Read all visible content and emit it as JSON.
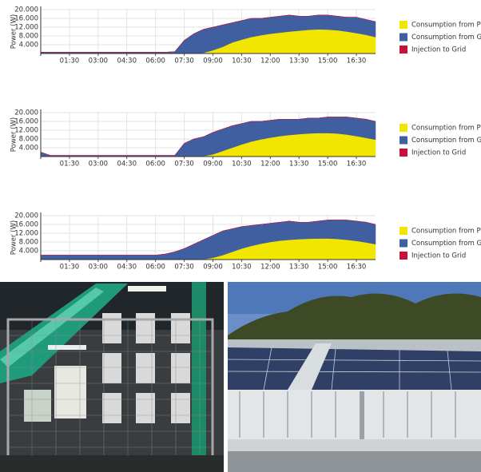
{
  "chart_data": [
    {
      "type": "stacked-area",
      "ylabel": "Power (W)",
      "x": [
        0,
        0.5,
        1,
        1.5,
        2,
        2.5,
        3,
        3.5,
        4,
        4.5,
        5,
        5.5,
        6,
        6.5,
        7,
        7.5,
        8,
        8.5,
        9,
        9.5,
        10,
        10.5,
        11,
        11.5,
        12,
        12.5,
        13,
        13.5,
        14,
        14.5,
        15,
        15.5,
        16,
        16.5,
        17,
        17.5
      ],
      "xlim": [
        0,
        17.5
      ],
      "xticks": [
        {
          "value": 1.5,
          "label": "01:30"
        },
        {
          "value": 3,
          "label": "03:00"
        },
        {
          "value": 4.5,
          "label": "04:30"
        },
        {
          "value": 6,
          "label": "06:00"
        },
        {
          "value": 7.5,
          "label": "07:30"
        },
        {
          "value": 9,
          "label": "09:00"
        },
        {
          "value": 10.5,
          "label": "10:30"
        },
        {
          "value": 12,
          "label": "12:00"
        },
        {
          "value": 13.5,
          "label": "13:30"
        },
        {
          "value": 15,
          "label": "15:00"
        },
        {
          "value": 16.5,
          "label": "16:30"
        }
      ],
      "ylim": [
        0,
        20000
      ],
      "yticks": [
        {
          "value": 4000,
          "label": "4.000"
        },
        {
          "value": 8000,
          "label": "8.000"
        },
        {
          "value": 12000,
          "label": "12.000"
        },
        {
          "value": 16000,
          "label": "16.000"
        },
        {
          "value": 20000,
          "label": "20.000"
        }
      ],
      "grid": true,
      "series": [
        {
          "name": "Consumption from PV",
          "color": "#f2e600",
          "values": [
            0,
            0,
            0,
            0,
            0,
            0,
            0,
            0,
            0,
            0,
            0,
            0,
            0,
            0,
            0,
            0,
            0,
            300,
            1500,
            3000,
            5000,
            6300,
            7500,
            8300,
            9000,
            9500,
            10000,
            10400,
            10800,
            11000,
            10900,
            10600,
            10000,
            9300,
            8500,
            7500
          ]
        },
        {
          "name": "Consumption from Grid",
          "color": "#3f5fa0",
          "values": [
            600,
            600,
            600,
            600,
            600,
            600,
            600,
            600,
            600,
            600,
            600,
            600,
            600,
            600,
            800,
            6000,
            9000,
            10700,
            10500,
            10000,
            9000,
            8700,
            8500,
            7700,
            7500,
            7500,
            7500,
            6600,
            6200,
            6500,
            6600,
            6400,
            6500,
            7200,
            7000,
            7000
          ]
        },
        {
          "name": "Injection to Grid",
          "color": "#c8103c",
          "values": [
            0,
            0,
            0,
            0,
            0,
            0,
            0,
            0,
            0,
            0,
            0,
            0,
            0,
            0,
            0,
            0,
            0,
            0,
            0,
            0,
            0,
            0,
            0,
            0,
            0,
            0,
            0,
            0,
            0,
            0,
            0,
            0,
            0,
            0,
            0,
            0
          ]
        }
      ]
    },
    {
      "type": "stacked-area",
      "ylabel": "Power (W)",
      "x": [
        0,
        0.5,
        1,
        1.5,
        2,
        2.5,
        3,
        3.5,
        4,
        4.5,
        5,
        5.5,
        6,
        6.5,
        7,
        7.5,
        8,
        8.5,
        9,
        9.5,
        10,
        10.5,
        11,
        11.5,
        12,
        12.5,
        13,
        13.5,
        14,
        14.5,
        15,
        15.5,
        16,
        16.5,
        17,
        17.5
      ],
      "xlim": [
        0,
        17.5
      ],
      "xticks": [
        {
          "value": 1.5,
          "label": "01:30"
        },
        {
          "value": 3,
          "label": "03:00"
        },
        {
          "value": 4.5,
          "label": "04:30"
        },
        {
          "value": 6,
          "label": "06:00"
        },
        {
          "value": 7.5,
          "label": "07:30"
        },
        {
          "value": 9,
          "label": "09:00"
        },
        {
          "value": 10.5,
          "label": "10:30"
        },
        {
          "value": 12,
          "label": "12:00"
        },
        {
          "value": 13.5,
          "label": "13:30"
        },
        {
          "value": 15,
          "label": "15:00"
        },
        {
          "value": 16.5,
          "label": "16:30"
        }
      ],
      "ylim": [
        0,
        20000
      ],
      "yticks": [
        {
          "value": 4000,
          "label": "4.000"
        },
        {
          "value": 8000,
          "label": "8.000"
        },
        {
          "value": 12000,
          "label": "12.000"
        },
        {
          "value": 16000,
          "label": "16.000"
        },
        {
          "value": 20000,
          "label": "20.000"
        }
      ],
      "grid": true,
      "series": [
        {
          "name": "Consumption from PV",
          "color": "#f2e600",
          "values": [
            0,
            0,
            0,
            0,
            0,
            0,
            0,
            0,
            0,
            0,
            0,
            0,
            0,
            0,
            0,
            0,
            0,
            200,
            1000,
            2500,
            4000,
            5500,
            6800,
            7800,
            8600,
            9300,
            9800,
            10200,
            10500,
            10700,
            10700,
            10500,
            10000,
            9300,
            8500,
            7700
          ]
        },
        {
          "name": "Consumption from Grid",
          "color": "#3f5fa0",
          "values": [
            2000,
            500,
            500,
            500,
            500,
            500,
            500,
            500,
            500,
            500,
            500,
            500,
            500,
            500,
            500,
            6000,
            8000,
            8800,
            10000,
            10000,
            10000,
            9500,
            9200,
            8200,
            7900,
            7700,
            7200,
            6800,
            7000,
            6800,
            7300,
            7500,
            8000,
            8200,
            8500,
            8300
          ]
        },
        {
          "name": "Injection to Grid",
          "color": "#c8103c",
          "values": [
            0,
            0,
            0,
            0,
            0,
            0,
            0,
            0,
            0,
            0,
            0,
            0,
            0,
            0,
            0,
            0,
            0,
            0,
            0,
            0,
            0,
            0,
            0,
            0,
            0,
            0,
            0,
            0,
            0,
            0,
            0,
            0,
            0,
            0,
            0,
            0
          ]
        }
      ]
    },
    {
      "type": "stacked-area",
      "ylabel": "Power (W)",
      "x": [
        0,
        0.5,
        1,
        1.5,
        2,
        2.5,
        3,
        3.5,
        4,
        4.5,
        5,
        5.5,
        6,
        6.5,
        7,
        7.5,
        8,
        8.5,
        9,
        9.5,
        10,
        10.5,
        11,
        11.5,
        12,
        12.5,
        13,
        13.5,
        14,
        14.5,
        15,
        15.5,
        16,
        16.5,
        17,
        17.5
      ],
      "xlim": [
        0,
        17.5
      ],
      "xticks": [
        {
          "value": 1.5,
          "label": "01:30"
        },
        {
          "value": 3,
          "label": "03:00"
        },
        {
          "value": 4.5,
          "label": "04:30"
        },
        {
          "value": 6,
          "label": "06:00"
        },
        {
          "value": 7.5,
          "label": "07:30"
        },
        {
          "value": 9,
          "label": "09:00"
        },
        {
          "value": 10.5,
          "label": "10:30"
        },
        {
          "value": 12,
          "label": "12:00"
        },
        {
          "value": 13.5,
          "label": "13:30"
        },
        {
          "value": 15,
          "label": "15:00"
        },
        {
          "value": 16.5,
          "label": "16:30"
        }
      ],
      "ylim": [
        0,
        20000
      ],
      "yticks": [
        {
          "value": 4000,
          "label": "4.000"
        },
        {
          "value": 8000,
          "label": "8.000"
        },
        {
          "value": 12000,
          "label": "12.000"
        },
        {
          "value": 16000,
          "label": "16.000"
        },
        {
          "value": 20000,
          "label": "20.000"
        }
      ],
      "grid": true,
      "series": [
        {
          "name": "Consumption from PV",
          "color": "#f2e600",
          "values": [
            0,
            0,
            0,
            0,
            0,
            0,
            0,
            0,
            0,
            0,
            0,
            0,
            0,
            0,
            0,
            0,
            0,
            200,
            800,
            2000,
            3500,
            5000,
            6200,
            7200,
            8000,
            8600,
            9000,
            9300,
            9500,
            9600,
            9600,
            9400,
            9000,
            8500,
            7800,
            7000
          ]
        },
        {
          "name": "Consumption from Grid",
          "color": "#3f5fa0",
          "values": [
            2000,
            2000,
            2000,
            2000,
            2000,
            2000,
            2000,
            2000,
            2000,
            2000,
            2000,
            2000,
            2000,
            2500,
            3500,
            5000,
            7000,
            8800,
            10200,
            11000,
            10500,
            10000,
            9300,
            8800,
            8500,
            8400,
            8500,
            7700,
            7500,
            7900,
            8400,
            8600,
            9000,
            9000,
            9200,
            9000
          ]
        },
        {
          "name": "Injection to Grid",
          "color": "#c8103c",
          "values": [
            0,
            0,
            0,
            0,
            0,
            0,
            0,
            0,
            0,
            0,
            0,
            0,
            0,
            0,
            0,
            0,
            0,
            0,
            0,
            0,
            0,
            0,
            0,
            0,
            0,
            0,
            0,
            0,
            0,
            0,
            0,
            0,
            0,
            0,
            0,
            0
          ]
        }
      ]
    }
  ]
}
